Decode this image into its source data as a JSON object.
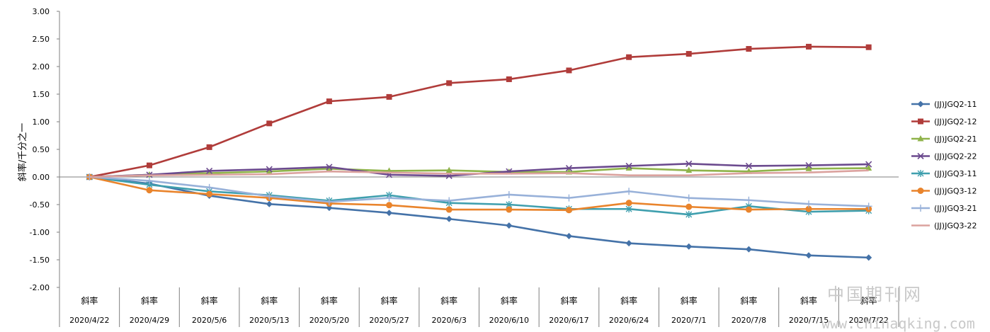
{
  "chart_data": {
    "type": "line",
    "title": "",
    "ylabel": "斜率/千分之一",
    "xlabel": "",
    "ylim": [
      -2.0,
      3.0
    ],
    "yticks": [
      "3.00",
      "2.50",
      "2.00",
      "1.50",
      "1.00",
      "0.50",
      "0.00",
      "-0.50",
      "-1.00",
      "-1.50",
      "-2.00"
    ],
    "category_label": "斜率",
    "categories": [
      "2020/4/22",
      "2020/4/29",
      "2020/5/6",
      "2020/5/13",
      "2020/5/20",
      "2020/5/27",
      "2020/6/3",
      "2020/6/10",
      "2020/6/17",
      "2020/6/24",
      "2020/7/1",
      "2020/7/8",
      "2020/7/15",
      "2020/7/22"
    ],
    "legend_position": "right",
    "grid": false,
    "series": [
      {
        "name": "(JJ)JGQ2-11",
        "color": "#4472a8",
        "marker": "diamond",
        "values": [
          0,
          -0.12,
          -0.34,
          -0.49,
          -0.56,
          -0.65,
          -0.76,
          -0.88,
          -1.07,
          -1.2,
          -1.26,
          -1.31,
          -1.42,
          -1.46
        ]
      },
      {
        "name": "(JJ)JGQ2-12",
        "color": "#b03c3a",
        "marker": "square",
        "values": [
          0,
          0.21,
          0.54,
          0.97,
          1.37,
          1.45,
          1.7,
          1.77,
          1.93,
          2.17,
          2.23,
          2.32,
          2.36,
          2.35
        ]
      },
      {
        "name": "(JJ)JGQ2-21",
        "color": "#8fb34a",
        "marker": "triangle",
        "values": [
          0,
          0.04,
          0.07,
          0.1,
          0.15,
          0.11,
          0.12,
          0.09,
          0.09,
          0.16,
          0.12,
          0.1,
          0.15,
          0.16
        ]
      },
      {
        "name": "(JJ)JGQ2-22",
        "color": "#6b4a8e",
        "marker": "x",
        "values": [
          0,
          0.04,
          0.11,
          0.14,
          0.18,
          0.04,
          0.02,
          0.1,
          0.16,
          0.2,
          0.24,
          0.2,
          0.21,
          0.23
        ]
      },
      {
        "name": "(JJ)JGQ3-11",
        "color": "#3f9fae",
        "marker": "star",
        "values": [
          0,
          -0.14,
          -0.26,
          -0.33,
          -0.43,
          -0.33,
          -0.47,
          -0.5,
          -0.58,
          -0.58,
          -0.68,
          -0.53,
          -0.63,
          -0.61
        ]
      },
      {
        "name": "(JJ)JGQ3-12",
        "color": "#e9842c",
        "marker": "circle",
        "values": [
          0,
          -0.24,
          -0.31,
          -0.38,
          -0.48,
          -0.51,
          -0.59,
          -0.59,
          -0.6,
          -0.47,
          -0.54,
          -0.59,
          -0.58,
          -0.58
        ]
      },
      {
        "name": "(JJ)JGQ3-21",
        "color": "#98b1d9",
        "marker": "plus",
        "values": [
          0,
          -0.07,
          -0.19,
          -0.35,
          -0.45,
          -0.38,
          -0.43,
          -0.32,
          -0.38,
          -0.26,
          -0.38,
          -0.42,
          -0.49,
          -0.53
        ]
      },
      {
        "name": "(JJ)JGQ3-22",
        "color": "#dba29e",
        "marker": "none",
        "values": [
          0,
          0.03,
          0.04,
          0.05,
          0.1,
          0.08,
          0.06,
          0.06,
          0.07,
          0.03,
          0.03,
          0.07,
          0.08,
          0.12
        ]
      }
    ]
  },
  "watermark": {
    "text_cn": "中国期刊网",
    "text_url": "www.chinaqking.com"
  }
}
